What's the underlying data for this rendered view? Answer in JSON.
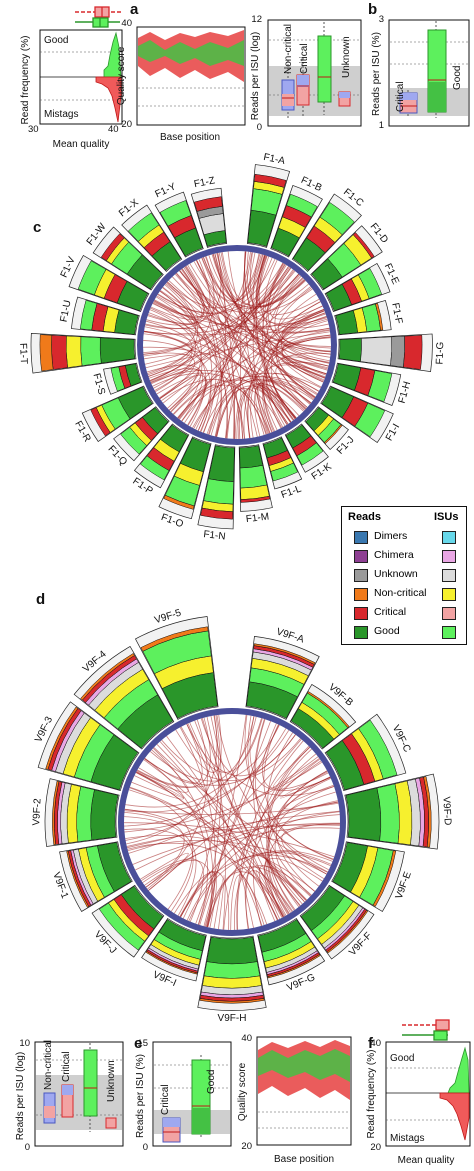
{
  "panels": {
    "a": "a",
    "b": "b",
    "c": "c",
    "d": "d",
    "e": "e",
    "f": "f"
  },
  "axes": {
    "read_frequency": "Read frequency (%)",
    "mean_quality": "Mean quality",
    "quality_score": "Quality score",
    "base_position": "Base position",
    "reads_per_isu_log": "Reads per ISU (log)",
    "reads_per_isu_pct": "Reads per ISU (%)"
  },
  "hist_labels": {
    "good": "Good",
    "mistags": "Mistags"
  },
  "ticks": {
    "qual_hist": [
      "30",
      "40"
    ],
    "qual_score": [
      "20",
      "40"
    ],
    "reads_log": [
      "0",
      "12"
    ],
    "reads_pct": [
      "1",
      "3"
    ],
    "bottom_log": [
      "0",
      "10"
    ],
    "bottom_pct": [
      "0",
      "15"
    ],
    "bottom_qual": [
      "20",
      "40"
    ],
    "bottom_freq": [
      "20",
      "40"
    ]
  },
  "categories": {
    "noncritical": "Non-critical",
    "critical": "Critical",
    "unknown": "Unknown",
    "good": "Good"
  },
  "legend": {
    "reads": "Reads",
    "isus": "ISUs",
    "rows": [
      {
        "label": "Dimers",
        "reads_color": "#3a78b0",
        "isus_color": "#67d8ea"
      },
      {
        "label": "Chimera",
        "reads_color": "#8e3f93",
        "isus_color": "#e9a6e4"
      },
      {
        "label": "Unknown",
        "reads_color": "#9a9a9a",
        "isus_color": "#dcdcdc"
      },
      {
        "label": "Non-critical",
        "reads_color": "#f07a1a",
        "isus_color": "#f6f02e"
      },
      {
        "label": "Critical",
        "reads_color": "#d8282d",
        "isus_color": "#f2a3a3"
      },
      {
        "label": "Good",
        "reads_color": "#2a962a",
        "isus_color": "#5df05d"
      }
    ]
  },
  "circle_c": {
    "sectors": [
      {
        "label": "F1-A",
        "value": 0.72,
        "scheme": "gg"
      },
      {
        "label": "F1-B",
        "value": 0.58,
        "scheme": "gyr"
      },
      {
        "label": "F1-C",
        "value": 0.7,
        "scheme": "gry"
      },
      {
        "label": "F1-D",
        "value": 0.62,
        "scheme": "ggy"
      },
      {
        "label": "F1-E",
        "value": 0.5,
        "scheme": "gry"
      },
      {
        "label": "F1-F",
        "value": 0.42,
        "scheme": "gy"
      },
      {
        "label": "F1-G",
        "value": 0.88,
        "scheme": "grey"
      },
      {
        "label": "F1-H",
        "value": 0.55,
        "scheme": "gr"
      },
      {
        "label": "F1-I",
        "value": 0.6,
        "scheme": "gr"
      },
      {
        "label": "F1-J",
        "value": 0.25,
        "scheme": "gy"
      },
      {
        "label": "F1-K",
        "value": 0.3,
        "scheme": "gr"
      },
      {
        "label": "F1-L",
        "value": 0.35,
        "scheme": "gry"
      },
      {
        "label": "F1-M",
        "value": 0.55,
        "scheme": "ggy"
      },
      {
        "label": "F1-N",
        "value": 0.75,
        "scheme": "gg"
      },
      {
        "label": "F1-O",
        "value": 0.7,
        "scheme": "gy"
      },
      {
        "label": "F1-P",
        "value": 0.5,
        "scheme": "gyr"
      },
      {
        "label": "F1-Q",
        "value": 0.42,
        "scheme": "gry"
      },
      {
        "label": "F1-R",
        "value": 0.58,
        "scheme": "gg"
      },
      {
        "label": "F1-S",
        "value": 0.2,
        "scheme": "gr"
      },
      {
        "label": "F1-T",
        "value": 1.0,
        "scheme": "big"
      },
      {
        "label": "F1-U",
        "value": 0.55,
        "scheme": "gyr"
      },
      {
        "label": "F1-V",
        "value": 0.68,
        "scheme": "gry"
      },
      {
        "label": "F1-W",
        "value": 0.6,
        "scheme": "gg"
      },
      {
        "label": "F1-X",
        "value": 0.55,
        "scheme": "gry"
      },
      {
        "label": "F1-Y",
        "value": 0.5,
        "scheme": "gr"
      },
      {
        "label": "F1-Z",
        "value": 0.45,
        "scheme": "grey"
      }
    ]
  },
  "circle_d": {
    "sectors": [
      {
        "label": "V9F-A",
        "value": 0.7,
        "scheme": "gyp"
      },
      {
        "label": "V9F-B",
        "value": 0.35,
        "scheme": "gy"
      },
      {
        "label": "V9F-C",
        "value": 0.62,
        "scheme": "gry"
      },
      {
        "label": "V9F-D",
        "value": 0.95,
        "scheme": "gyp"
      },
      {
        "label": "V9F-E",
        "value": 0.55,
        "scheme": "gy"
      },
      {
        "label": "V9F-F",
        "value": 0.48,
        "scheme": "gyp"
      },
      {
        "label": "V9F-G",
        "value": 0.45,
        "scheme": "gyp"
      },
      {
        "label": "V9F-H",
        "value": 0.72,
        "scheme": "gyp"
      },
      {
        "label": "V9F-I",
        "value": 0.4,
        "scheme": "gyp"
      },
      {
        "label": "V9F-J",
        "value": 0.45,
        "scheme": "gry"
      },
      {
        "label": "V9F-1",
        "value": 0.55,
        "scheme": "gyp"
      },
      {
        "label": "V9F-2",
        "value": 0.7,
        "scheme": "gyp"
      },
      {
        "label": "V9F-3",
        "value": 0.88,
        "scheme": "gyp"
      },
      {
        "label": "V9F-4",
        "value": 0.9,
        "scheme": "gyp"
      },
      {
        "label": "V9F-5",
        "value": 0.95,
        "scheme": "gy"
      }
    ]
  }
}
